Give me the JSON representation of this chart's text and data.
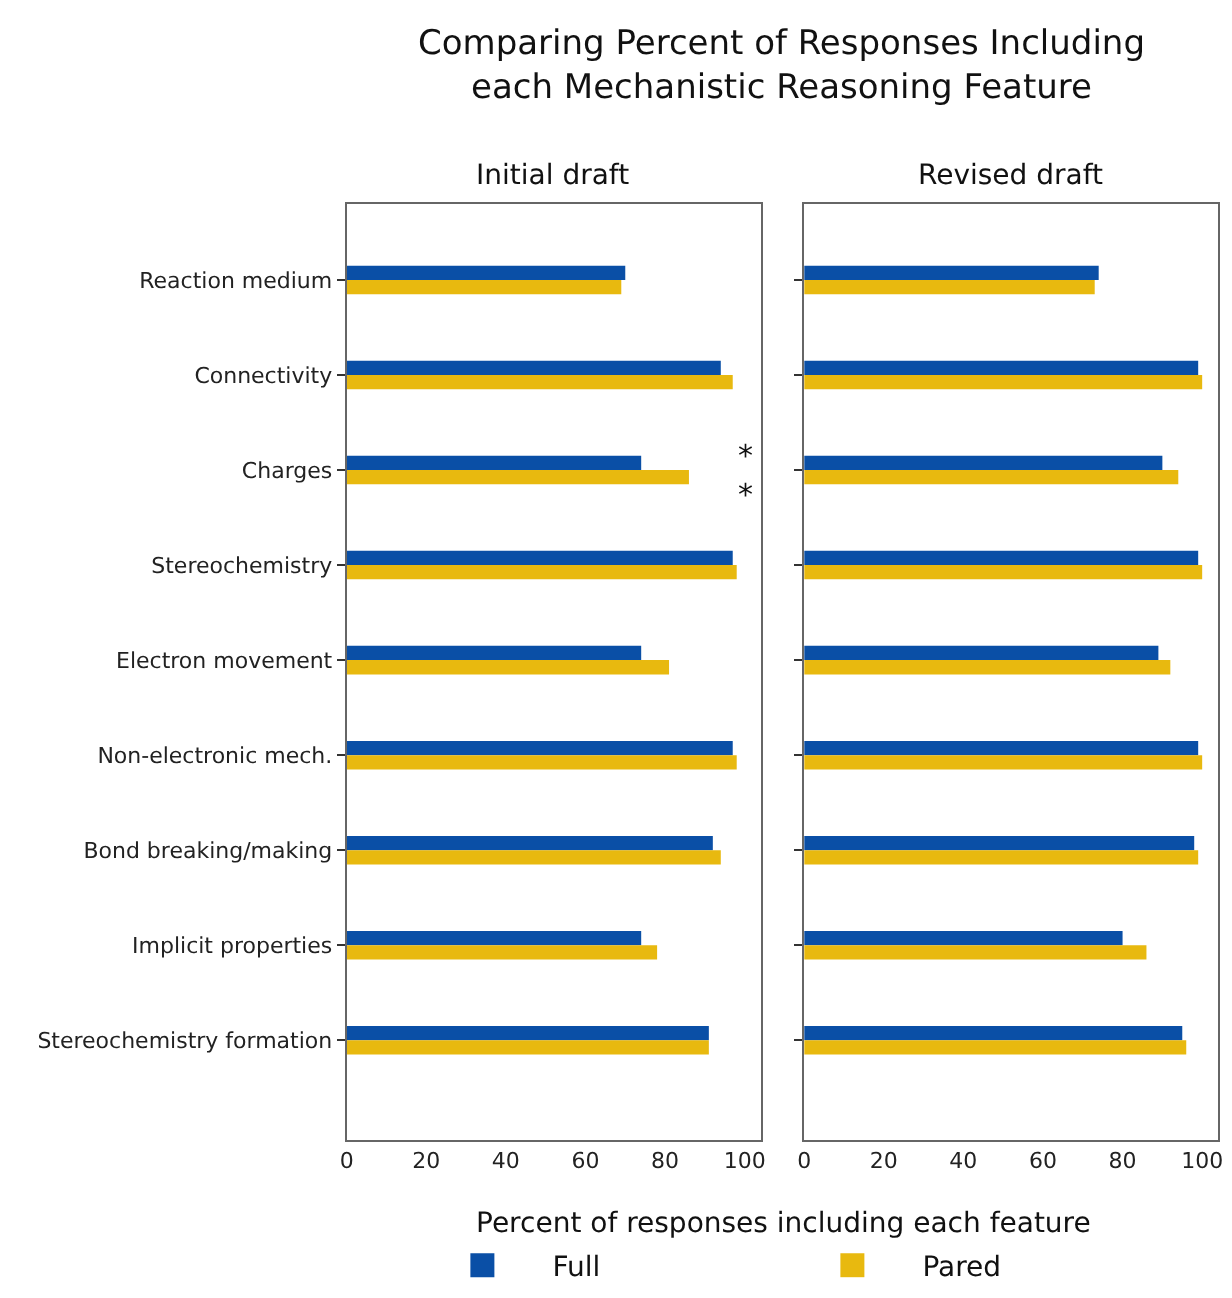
{
  "chart_data": [
    {
      "type": "bar",
      "orientation": "horizontal",
      "title": "Comparing Percent of Responses Including\neach Mechanistic Reasoning Feature",
      "subtitle": "Initial draft",
      "xlabel": "Percent of responses including each feature",
      "categories": [
        "Reaction medium",
        "Connectivity",
        "Charges",
        "Stereochemistry",
        "Electron movement",
        "Non-electronic mech.",
        "Bond breaking/making",
        "Implicit properties",
        "Stereochemistry formation"
      ],
      "series": [
        {
          "name": "Full",
          "color": "#0a4fa6",
          "values": [
            70,
            94,
            74,
            97,
            74,
            97,
            92,
            74,
            91
          ]
        },
        {
          "name": "Pared",
          "color": "#e8b90f",
          "values": [
            69,
            97,
            86,
            98,
            81,
            98,
            94,
            78,
            91
          ]
        }
      ],
      "xlim": [
        0,
        104
      ],
      "xticks": [
        0,
        20,
        40,
        60,
        80,
        100
      ],
      "legend": "bottom",
      "annotations": [
        "**"
      ]
    },
    {
      "type": "bar",
      "orientation": "horizontal",
      "subtitle": "Revised draft",
      "categories": [
        "Reaction medium",
        "Connectivity",
        "Charges",
        "Stereochemistry",
        "Electron movement",
        "Non-electronic mech.",
        "Bond breaking/making",
        "Implicit properties",
        "Stereochemistry formation"
      ],
      "series": [
        {
          "name": "Full",
          "color": "#0a4fa6",
          "values": [
            74,
            99,
            90,
            99,
            89,
            99,
            98,
            80,
            95
          ]
        },
        {
          "name": "Pared",
          "color": "#e8b90f",
          "values": [
            73,
            100,
            94,
            100,
            92,
            100,
            99,
            86,
            96
          ]
        }
      ],
      "xlim": [
        0,
        104
      ],
      "xticks": [
        0,
        20,
        40,
        60,
        80,
        100
      ],
      "tick_labels": "x"
    }
  ]
}
